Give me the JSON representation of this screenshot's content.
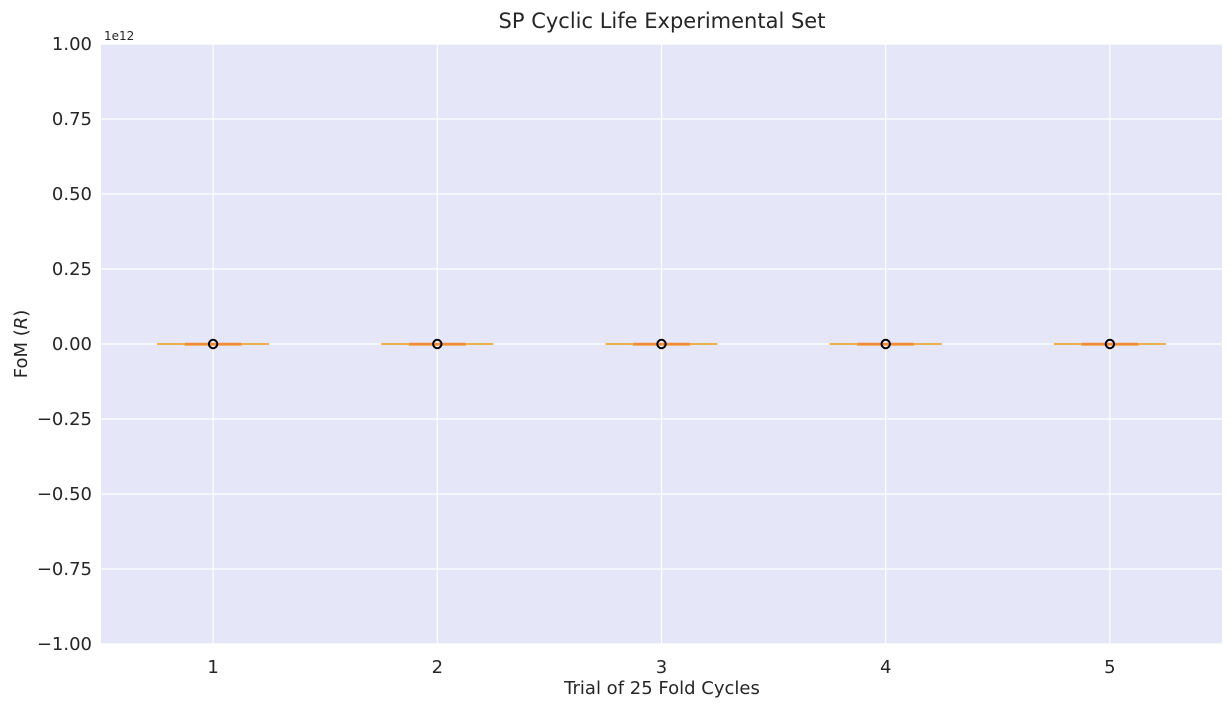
{
  "chart_data": {
    "type": "box",
    "title": "SP Cyclic Life Experimental Set",
    "xlabel": "Trial of 25 Fold Cycles",
    "ylabel": "FoM ($R$)",
    "ylabel_main": "FoM (",
    "ylabel_italic": "R",
    "ylabel_end": ")",
    "y_offset_text": "1e12",
    "ylim": [
      -1.0,
      1.0
    ],
    "y_ticks": [
      -1.0,
      -0.75,
      -0.5,
      -0.25,
      0.0,
      0.25,
      0.5,
      0.75,
      1.0
    ],
    "y_tick_labels": [
      "−1.00",
      "−0.75",
      "−0.50",
      "−0.25",
      "0.00",
      "0.25",
      "0.50",
      "0.75",
      "1.00"
    ],
    "categories": [
      "1",
      "2",
      "3",
      "4",
      "5"
    ],
    "series": [
      {
        "box": [
          0,
          0,
          0,
          0,
          0
        ],
        "outliers": [
          0
        ]
      },
      {
        "box": [
          0,
          0,
          0,
          0,
          0
        ],
        "outliers": [
          0
        ]
      },
      {
        "box": [
          0,
          0,
          0,
          0,
          0
        ],
        "outliers": [
          0
        ]
      },
      {
        "box": [
          0,
          0,
          0,
          0,
          0
        ],
        "outliers": [
          0
        ]
      },
      {
        "box": [
          0,
          0,
          0,
          0,
          0
        ],
        "outliers": [
          0
        ]
      }
    ],
    "grid": true,
    "colors": {
      "plot_background": "#e5e6f8",
      "grid": "#ffffff",
      "box": "#f0a830",
      "median": "#f08c3a",
      "outlier_edge": "#000000"
    }
  }
}
